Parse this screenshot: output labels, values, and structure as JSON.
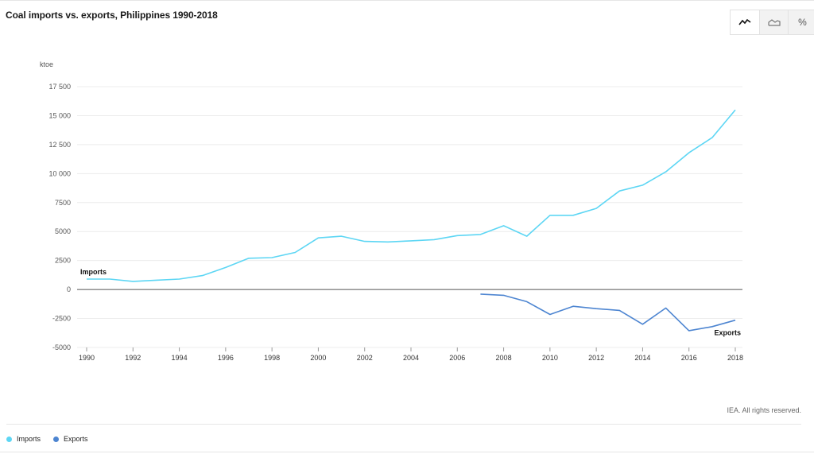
{
  "title": "Coal imports vs. exports, Philippines 1990-2018",
  "toggles": [
    {
      "name": "line-chart-toggle",
      "icon": "line-chart-icon",
      "label": ""
    },
    {
      "name": "area-chart-toggle",
      "icon": "area-chart-icon",
      "label": ""
    },
    {
      "name": "percent-toggle",
      "icon": "percent-icon",
      "label": "%"
    }
  ],
  "credit": "IEA. All rights reserved.",
  "chart_data": {
    "type": "line",
    "title": "Coal imports vs. exports, Philippines 1990-2018",
    "ylabel": "ktoe",
    "xlabel": "",
    "ylim": [
      -5000,
      17500
    ],
    "xlim": [
      1990,
      2018
    ],
    "yticks": [
      17500,
      15000,
      12500,
      10000,
      7500,
      5000,
      2500,
      0,
      -2500,
      -5000
    ],
    "ytick_labels": [
      "17 500",
      "15 000",
      "12 500",
      "10 000",
      "7500",
      "5000",
      "2500",
      "0",
      "-2500",
      "-5000"
    ],
    "xticks": [
      1990,
      1992,
      1994,
      1996,
      1998,
      2000,
      2002,
      2004,
      2006,
      2008,
      2010,
      2012,
      2014,
      2016,
      2018
    ],
    "xtick_labels": [
      "1990",
      "1992",
      "1994",
      "1996",
      "1998",
      "2000",
      "2002",
      "2004",
      "2006",
      "2008",
      "2010",
      "2012",
      "2014",
      "2016",
      "2018"
    ],
    "grid": true,
    "legend_position": "bottom-left",
    "series": [
      {
        "name": "Imports",
        "label": "Imports",
        "color": "#5dd6f4",
        "x": [
          1990,
          1991,
          1992,
          1993,
          1994,
          1995,
          1996,
          1997,
          1998,
          1999,
          2000,
          2001,
          2002,
          2003,
          2004,
          2005,
          2006,
          2007,
          2008,
          2009,
          2010,
          2011,
          2012,
          2013,
          2014,
          2015,
          2016,
          2017,
          2018
        ],
        "values": [
          900,
          900,
          700,
          800,
          900,
          1200,
          1900,
          2700,
          2750,
          3200,
          4450,
          4600,
          4150,
          4100,
          4200,
          4300,
          4650,
          4750,
          5500,
          4600,
          6400,
          6400,
          7000,
          8500,
          9000,
          10150,
          11800,
          13100,
          15500
        ]
      },
      {
        "name": "Exports",
        "label": "Exports",
        "color": "#4d85d1",
        "x": [
          2007,
          2008,
          2009,
          2010,
          2011,
          2012,
          2013,
          2014,
          2015,
          2016,
          2017,
          2018
        ],
        "values": [
          -400,
          -500,
          -1050,
          -2150,
          -1450,
          -1650,
          -1800,
          -3000,
          -1600,
          -3550,
          -3200,
          -2650
        ]
      }
    ]
  }
}
